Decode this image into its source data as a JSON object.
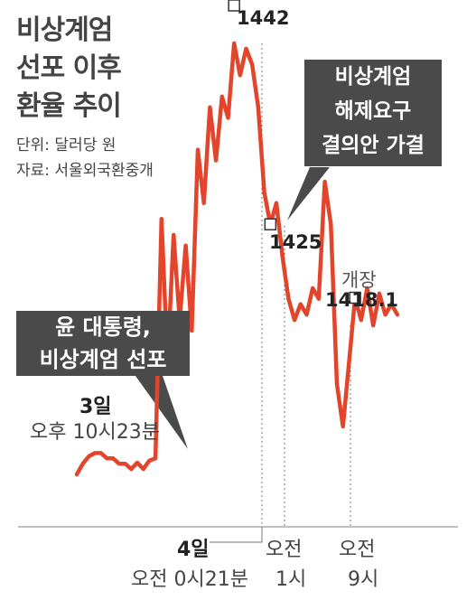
{
  "title_lines": [
    "비상계엄",
    "선포 이후",
    "환율 추이"
  ],
  "unit": "단위: 달러당 원",
  "source": "자료: 서울외국환중개",
  "callouts": {
    "declaration": [
      "윤 대통령,",
      "비상계엄 선포"
    ],
    "resolution": [
      "비상계엄",
      "해제요구",
      "결의안 가결"
    ]
  },
  "annotations": {
    "decl_day": "3일",
    "decl_time": "오후 10시23분",
    "market_open": "개장"
  },
  "x_ticks": [
    {
      "line1": "4일",
      "line2": "오전 0시21분"
    },
    {
      "line1": "오전",
      "line2": "1시"
    },
    {
      "line1": "오전",
      "line2": "9시"
    }
  ],
  "chart_data": {
    "type": "line",
    "title": "비상계엄 선포 이후 환율 추이",
    "ylabel": "단위: 달러당 원",
    "ylim": [
      1400,
      1446
    ],
    "series": [
      {
        "color": "#e2452b",
        "values": [
          1401.5,
          1402.5,
          1403.2,
          1403.5,
          1403.5,
          1403.0,
          1403.0,
          1402.5,
          1402.5,
          1402.0,
          1402.6,
          1402.0,
          1402.8,
          1403.0,
          1425.5,
          1412,
          1424,
          1416,
          1423,
          1415,
          1432,
          1427,
          1436,
          1431,
          1437,
          1435,
          1442,
          1439,
          1441.5,
          1440,
          1436,
          1428,
          1425,
          1427,
          1422,
          1418,
          1416,
          1417.5,
          1416.5,
          1419,
          1418,
          1429,
          1425,
          1410,
          1406,
          1412,
          1418.1,
          1416,
          1419,
          1415.5,
          1418.5,
          1416.5,
          1417.5,
          1416.5
        ],
        "key_points": [
          {
            "label": "1442",
            "value": 1442
          },
          {
            "label": "1425",
            "value": 1425
          },
          {
            "label": "1418.1",
            "value": 1418.1
          }
        ]
      }
    ]
  }
}
